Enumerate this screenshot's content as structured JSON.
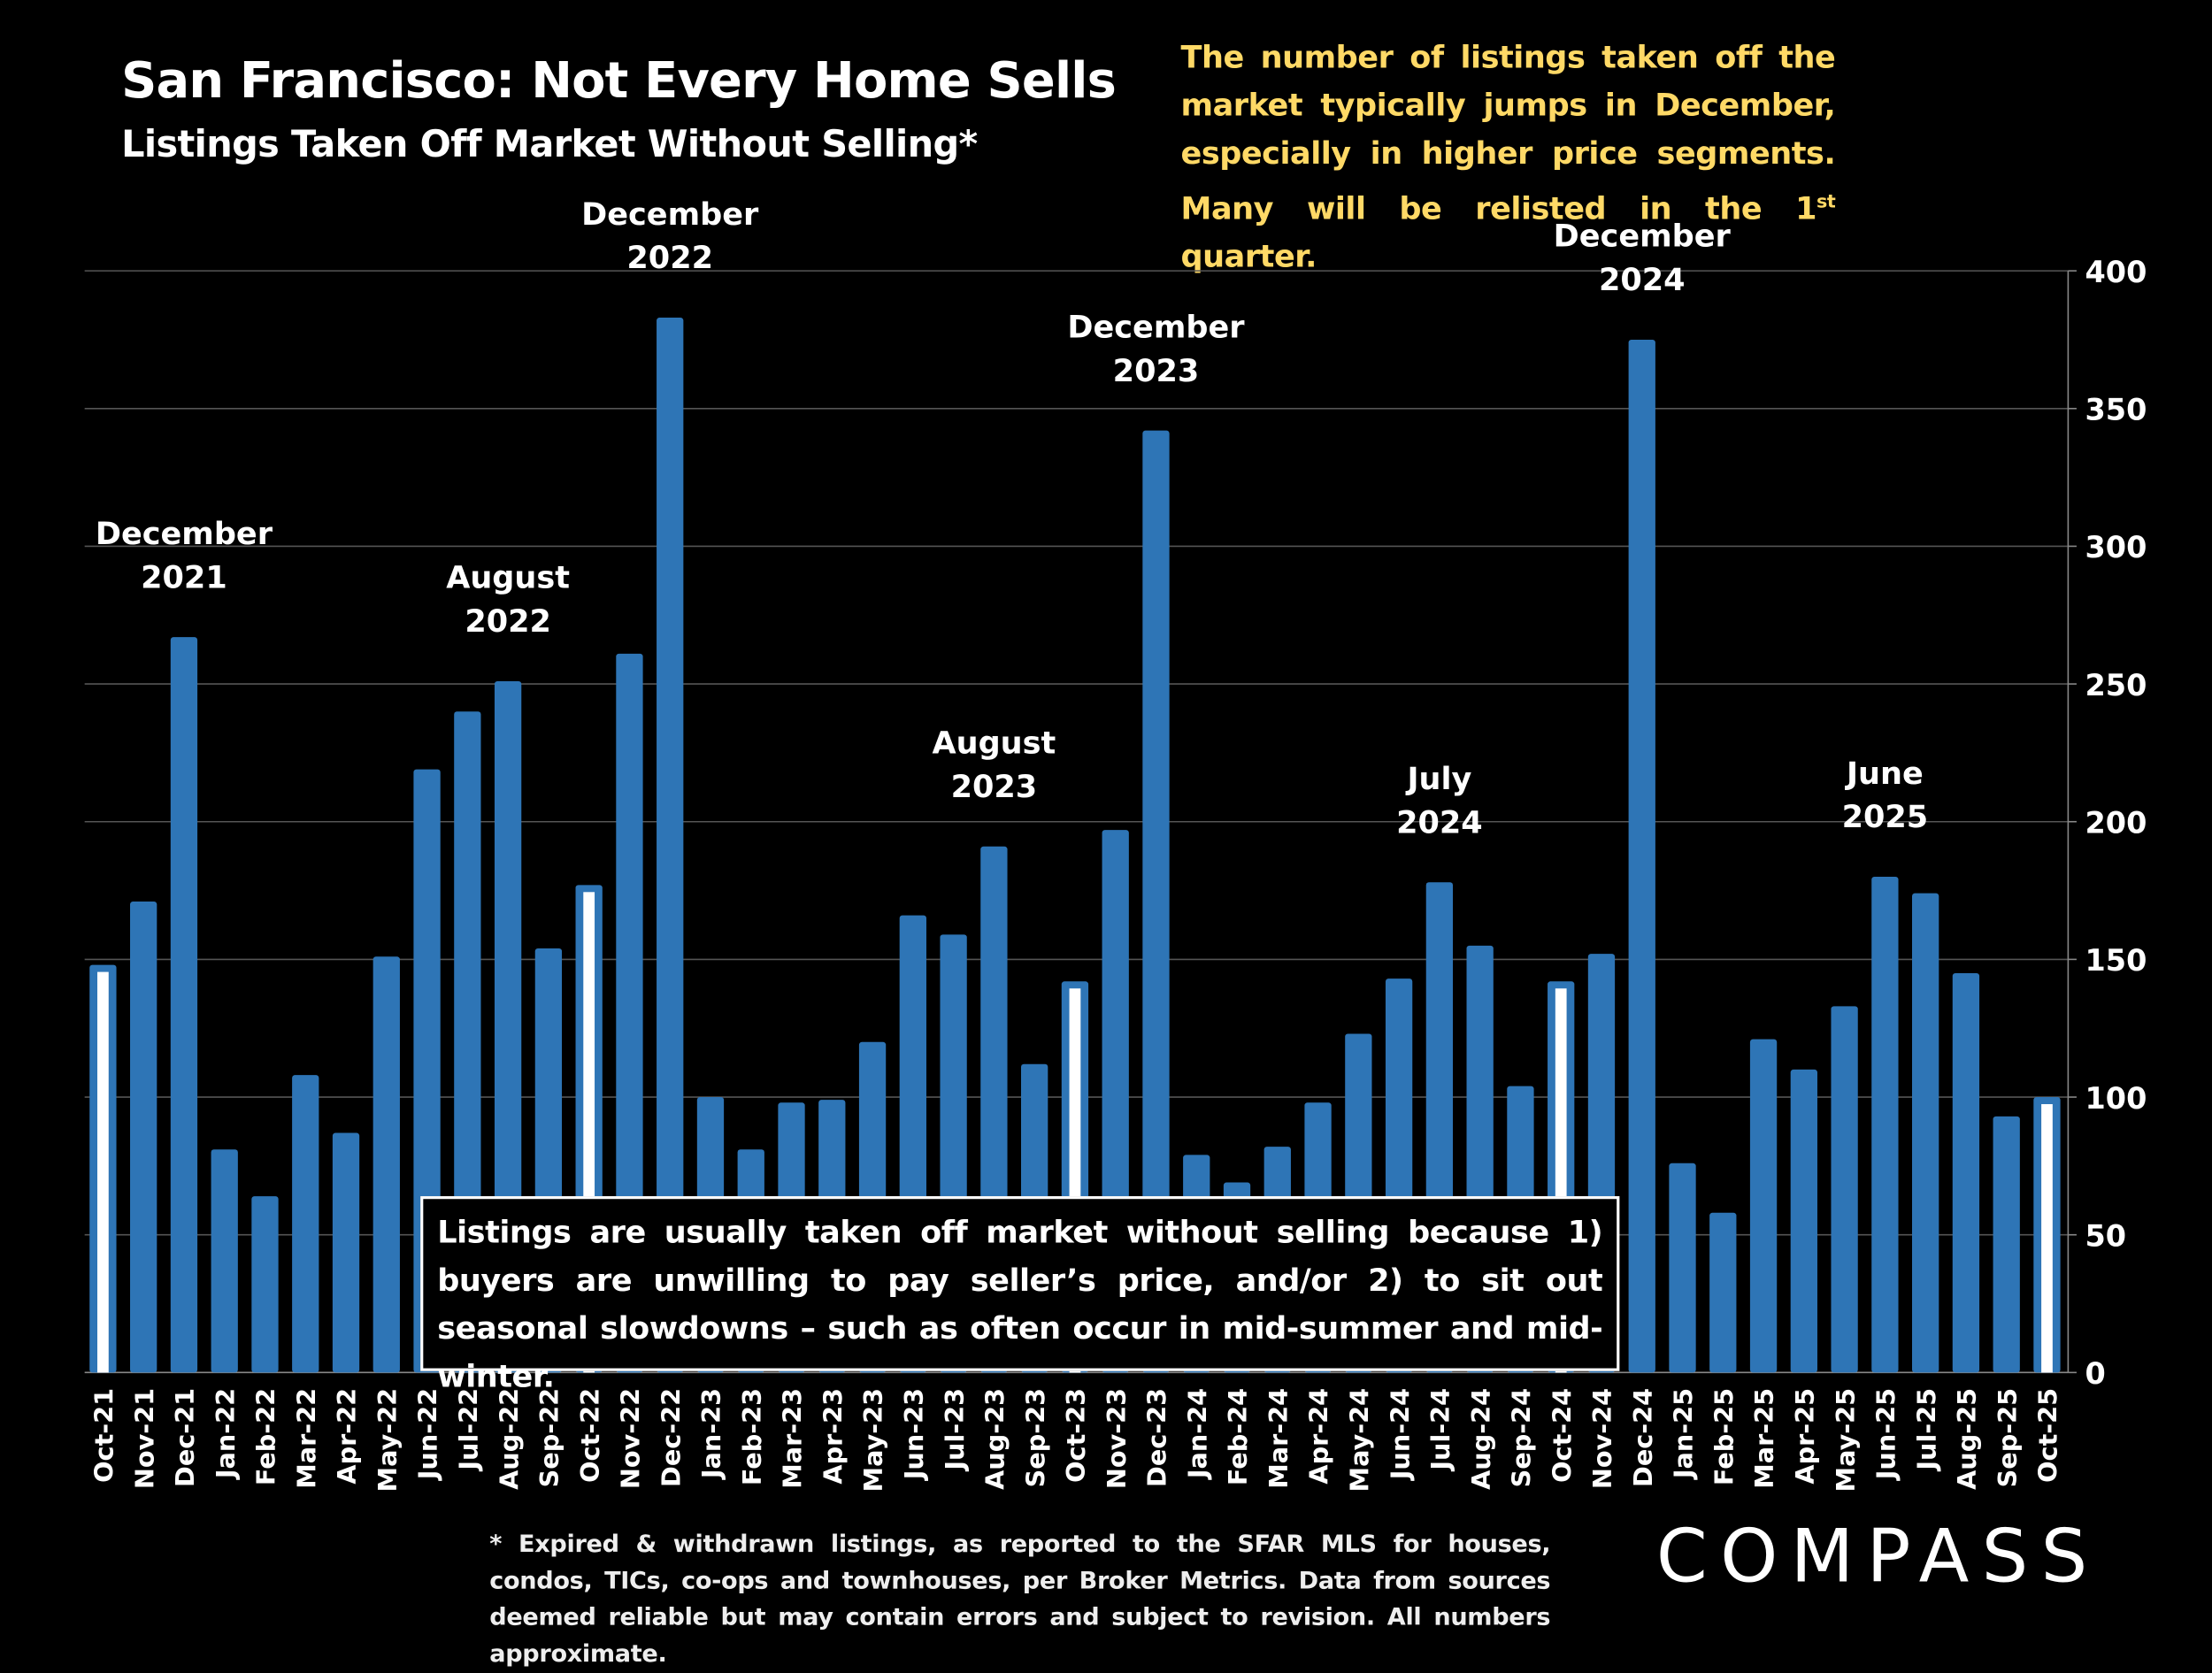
{
  "header": {
    "title": "San Francisco: Not Every Home Sells",
    "subtitle": "Listings Taken Off Market Without Selling*",
    "note_pre": "The number of listings taken off the market typically jumps in December, especially in higher price segments. Many will be relisted in the 1",
    "note_sup": "st",
    "note_post": " quarter."
  },
  "callout": "Listings are usually taken off market without selling because 1) buyers are unwilling to pay seller’s price, and/or 2) to sit out seasonal slowdowns – such as often occur in mid-summer and mid-winter.",
  "footnote": "* Expired & withdrawn listings, as reported to the SFAR MLS for houses, condos, TICs, co-ops and townhouses, per Broker Metrics. Data from sources deemed reliable but may contain errors and subject to revision. All numbers approximate.",
  "logo": "COMPASS",
  "chart_data": {
    "type": "bar",
    "title": "San Francisco: Not Every Home Sells",
    "ylim": [
      0,
      400
    ],
    "yticks": [
      0,
      50,
      100,
      150,
      200,
      250,
      300,
      350,
      400
    ],
    "y_axis_side": "right",
    "grid": true,
    "bar_color": "#2e75b6",
    "highlight_color": "#ffffff",
    "highlighted_categories": [
      "Oct-21",
      "Oct-22",
      "Oct-23",
      "Oct-24",
      "Oct-25"
    ],
    "categories": [
      "Oct-21",
      "Nov-21",
      "Dec-21",
      "Jan-22",
      "Feb-22",
      "Mar-22",
      "Apr-22",
      "May-22",
      "Jun-22",
      "Jul-22",
      "Aug-22",
      "Sep-22",
      "Oct-22",
      "Nov-22",
      "Dec-22",
      "Jan-23",
      "Feb-23",
      "Mar-23",
      "Apr-23",
      "May-23",
      "Jun-23",
      "Jul-23",
      "Aug-23",
      "Sep-23",
      "Oct-23",
      "Nov-23",
      "Dec-23",
      "Jan-24",
      "Feb-24",
      "Mar-24",
      "Apr-24",
      "May-24",
      "Jun-24",
      "Jul-24",
      "Aug-24",
      "Sep-24",
      "Oct-24",
      "Nov-24",
      "Dec-24",
      "Jan-25",
      "Feb-25",
      "Mar-25",
      "Apr-25",
      "May-25",
      "Jun-25",
      "Jul-25",
      "Aug-25",
      "Sep-25",
      "Oct-25"
    ],
    "values": [
      148,
      171,
      267,
      81,
      64,
      108,
      87,
      151,
      219,
      240,
      251,
      154,
      177,
      261,
      383,
      100,
      81,
      98,
      99,
      120,
      166,
      159,
      191,
      112,
      142,
      197,
      342,
      79,
      69,
      82,
      98,
      123,
      143,
      178,
      155,
      104,
      142,
      152,
      375,
      76,
      58,
      121,
      110,
      133,
      180,
      174,
      145,
      93,
      100
    ],
    "annotations": [
      {
        "category": "Dec-21",
        "line1": "December",
        "line2": "2021"
      },
      {
        "category": "Aug-22",
        "line1": "August",
        "line2": "2022"
      },
      {
        "category": "Dec-22",
        "line1": "December",
        "line2": "2022"
      },
      {
        "category": "Aug-23",
        "line1": "August",
        "line2": "2023"
      },
      {
        "category": "Dec-23",
        "line1": "December",
        "line2": "2023"
      },
      {
        "category": "Jul-24",
        "line1": "July",
        "line2": "2024"
      },
      {
        "category": "Dec-24",
        "line1": "December",
        "line2": "2024"
      },
      {
        "category": "Jun-25",
        "line1": "June",
        "line2": "2025"
      }
    ]
  }
}
